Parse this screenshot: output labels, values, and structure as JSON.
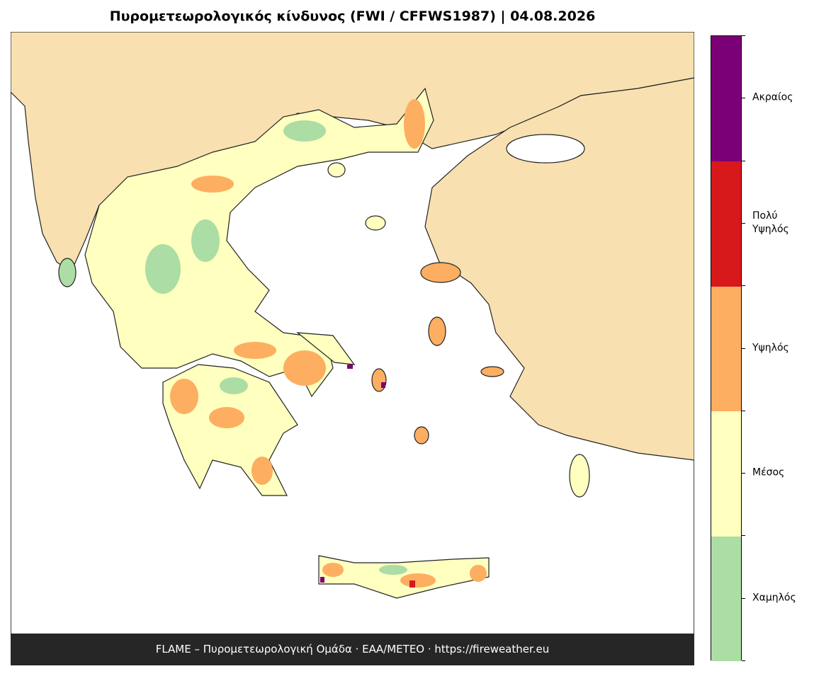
{
  "title": "Πυρομετεωρολογικός κίνδυνος (FWI / CFFWS1987)  |  04.08.2026",
  "legend": {
    "levels": [
      {
        "label": "Χαμηλός",
        "color": "#abdda4"
      },
      {
        "label": "Μέσος",
        "color": "#ffffbf"
      },
      {
        "label": "Υψηλός",
        "color": "#fdae61"
      },
      {
        "label": "Πολύ Υψηλός",
        "color": "#d7191c"
      },
      {
        "label": "Ακραίος",
        "color": "#7b0077"
      }
    ]
  },
  "footer": "FLAME – Πυρομετεωρολογική Ομάδα · ΕΑΑ/METEO · https://fireweather.eu"
}
